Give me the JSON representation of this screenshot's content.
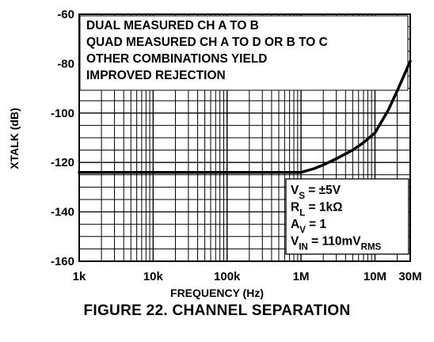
{
  "chart_data": {
    "type": "line",
    "title": "",
    "xlabel": "FREQUENCY (Hz)",
    "ylabel": "XTALK (dB)",
    "x_scale": "log",
    "xlim": [
      1000,
      30000000
    ],
    "ylim": [
      -160,
      -60
    ],
    "grid": true,
    "x_ticks": [
      {
        "value": 1000,
        "label": "1k"
      },
      {
        "value": 10000,
        "label": "10k"
      },
      {
        "value": 100000,
        "label": "100k"
      },
      {
        "value": 1000000,
        "label": "1M"
      },
      {
        "value": 10000000,
        "label": "10M"
      },
      {
        "value": 30000000,
        "label": "30M"
      }
    ],
    "y_ticks": [
      {
        "value": -60,
        "label": "-60"
      },
      {
        "value": -80,
        "label": "-80"
      },
      {
        "value": -100,
        "label": "-100"
      },
      {
        "value": -120,
        "label": "-120"
      },
      {
        "value": -140,
        "label": "-140"
      },
      {
        "value": -160,
        "label": "-160"
      }
    ],
    "series": [
      {
        "x": [
          1000,
          10000,
          100000,
          1000000,
          1500000,
          2000000,
          3000000,
          5000000,
          7000000,
          10000000,
          15000000,
          20000000,
          30000000
        ],
        "y": [
          -124,
          -124,
          -124,
          -124,
          -122.5,
          -121,
          -118.5,
          -115,
          -112,
          -108,
          -99,
          -91,
          -79
        ]
      }
    ],
    "annotations": [
      "DUAL MEASURED CH A TO B",
      "QUAD MEASURED CH A TO D OR B TO C",
      "OTHER COMBINATIONS YIELD",
      "IMPROVED REJECTION"
    ],
    "conditions": [
      {
        "main": "V",
        "sub": "S",
        "rest": " = ±5V",
        "sub2": ""
      },
      {
        "main": "R",
        "sub": "L",
        "rest": " = 1kΩ",
        "sub2": ""
      },
      {
        "main": "A",
        "sub": "V",
        "rest": " = 1",
        "sub2": ""
      },
      {
        "main": "V",
        "sub": "IN",
        "rest": " = 110mV",
        "sub2": "RMS"
      }
    ]
  },
  "figure": {
    "caption": "FIGURE 22.  CHANNEL SEPARATION"
  }
}
